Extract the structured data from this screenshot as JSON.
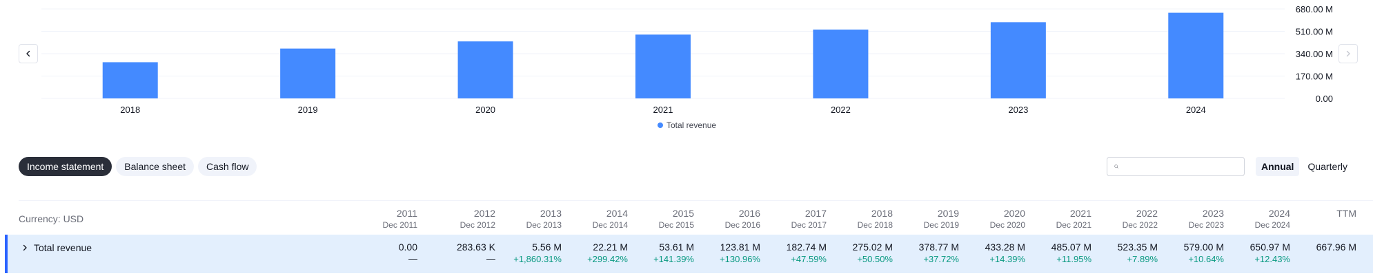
{
  "chart_data": {
    "type": "bar",
    "categories": [
      "2018",
      "2019",
      "2020",
      "2021",
      "2022",
      "2023",
      "2024"
    ],
    "series": [
      {
        "name": "Total revenue",
        "values": [
          275.02,
          378.77,
          433.28,
          485.07,
          523.35,
          579.0,
          650.97
        ]
      }
    ],
    "y_ticks": [
      "680.00 M",
      "510.00 M",
      "340.00 M",
      "170.00 M",
      "0.00"
    ],
    "y_tick_values": [
      680,
      510,
      340,
      170,
      0
    ],
    "ylim": [
      0,
      680
    ],
    "y_axis_side": "right",
    "grid": true,
    "legend": "bottom-center",
    "bar_color": "#448aff"
  },
  "nav": {
    "prev_icon": "chevron-left-icon",
    "next_icon": "chevron-right-icon"
  },
  "legend": {
    "label": "Total revenue"
  },
  "tabs": [
    {
      "label": "Income statement",
      "active": true
    },
    {
      "label": "Balance sheet",
      "active": false
    },
    {
      "label": "Cash flow",
      "active": false
    }
  ],
  "search": {
    "value": "",
    "placeholder": "",
    "icon": "search-icon"
  },
  "period": {
    "annual_label": "Annual",
    "quarterly_label": "Quarterly",
    "selected": "Annual"
  },
  "table": {
    "currency_label": "Currency: USD",
    "columns": [
      {
        "year": "2011",
        "date": "Dec 2011"
      },
      {
        "year": "2012",
        "date": "Dec 2012"
      },
      {
        "year": "2013",
        "date": "Dec 2013"
      },
      {
        "year": "2014",
        "date": "Dec 2014"
      },
      {
        "year": "2015",
        "date": "Dec 2015"
      },
      {
        "year": "2016",
        "date": "Dec 2016"
      },
      {
        "year": "2017",
        "date": "Dec 2017"
      },
      {
        "year": "2018",
        "date": "Dec 2018"
      },
      {
        "year": "2019",
        "date": "Dec 2019"
      },
      {
        "year": "2020",
        "date": "Dec 2020"
      },
      {
        "year": "2021",
        "date": "Dec 2021"
      },
      {
        "year": "2022",
        "date": "Dec 2022"
      },
      {
        "year": "2023",
        "date": "Dec 2023"
      },
      {
        "year": "2024",
        "date": "Dec 2024"
      },
      {
        "year": "TTM",
        "date": ""
      }
    ],
    "rows": [
      {
        "label": "Total revenue",
        "expand_icon": "chevron-right-icon",
        "values": [
          "0.00",
          "283.63 K",
          "5.56 M",
          "22.21 M",
          "53.61 M",
          "123.81 M",
          "182.74 M",
          "275.02 M",
          "378.77 M",
          "433.28 M",
          "485.07 M",
          "523.35 M",
          "579.00 M",
          "650.97 M",
          "667.96 M"
        ],
        "changes": [
          "—",
          "—",
          "+1,860.31%",
          "+299.42%",
          "+141.39%",
          "+130.96%",
          "+47.59%",
          "+50.50%",
          "+37.72%",
          "+14.39%",
          "+11.95%",
          "+7.89%",
          "+10.64%",
          "+12.43%",
          ""
        ]
      }
    ]
  }
}
